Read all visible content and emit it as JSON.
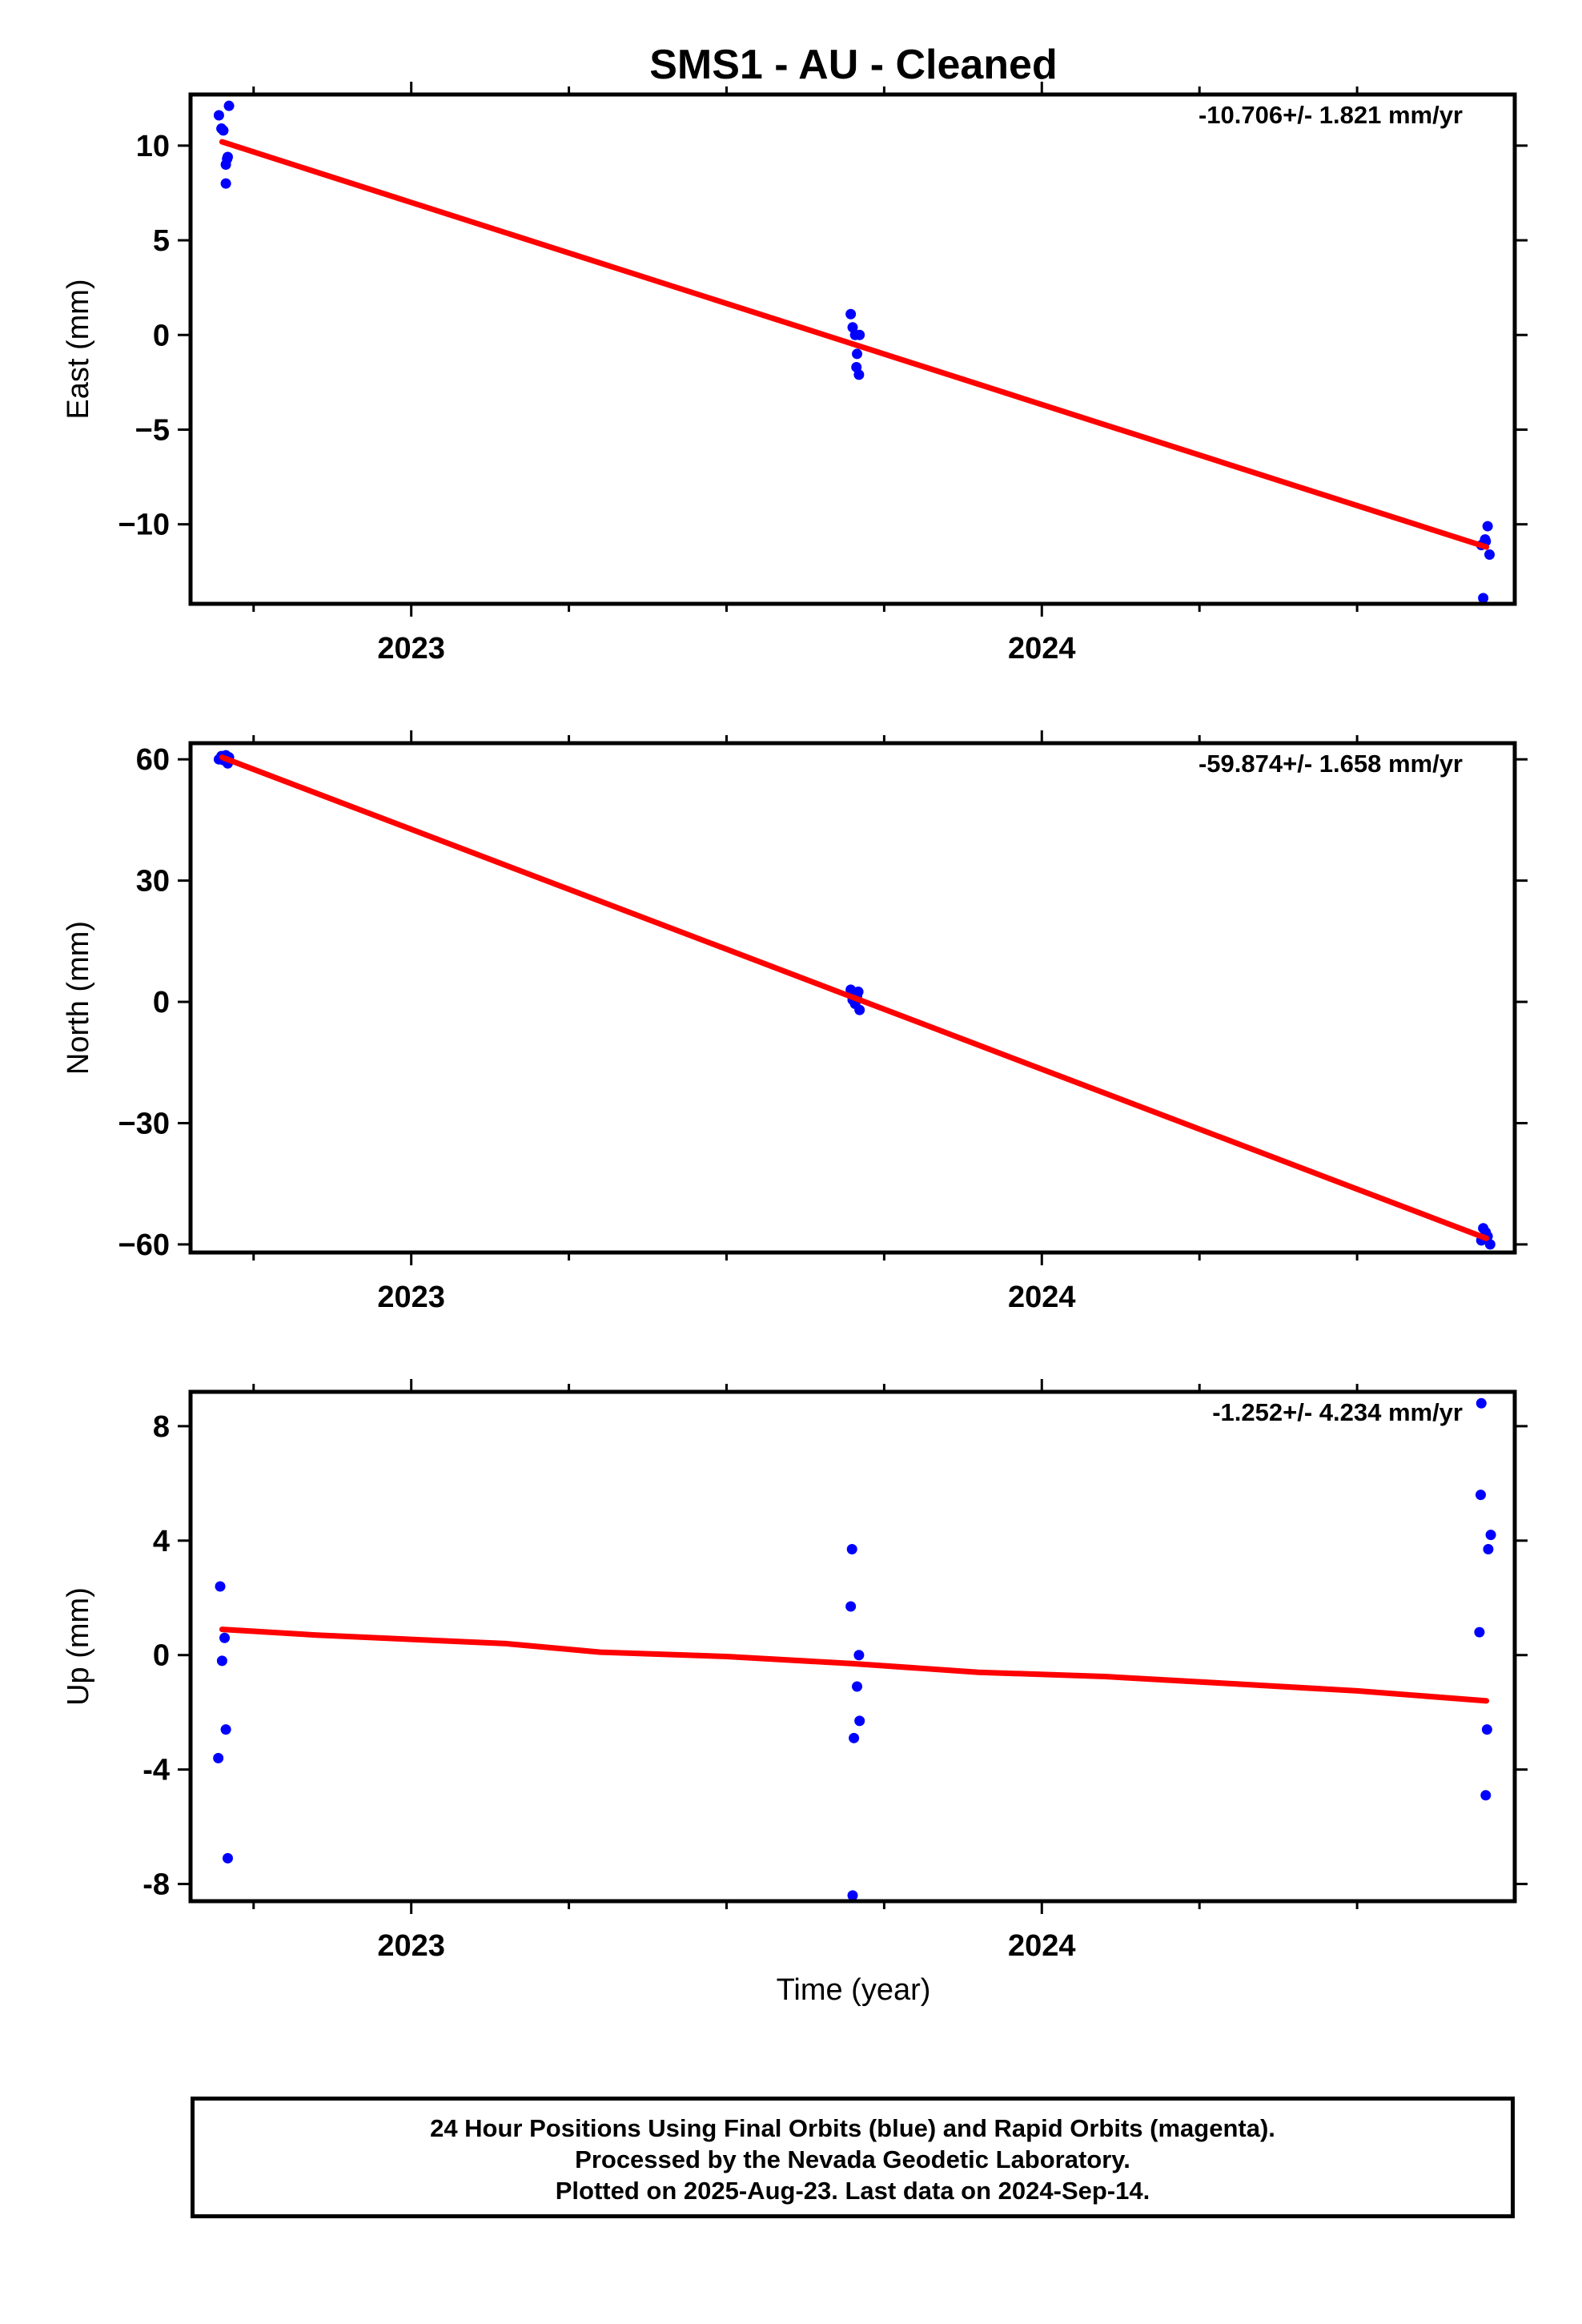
{
  "title": "SMS1  - AU - Cleaned",
  "xlabel": "Time (year)",
  "footer": {
    "line1": "24 Hour Positions Using Final Orbits (blue) and Rapid Orbits (magenta).",
    "line2": "Processed by the Nevada Geodetic Laboratory.",
    "line3": "Plotted on 2025-Aug-23. Last data on 2024-Sep-14."
  },
  "colors": {
    "data": "#0000ff",
    "fit": "#ff0000",
    "axis": "#000000"
  },
  "chart_data": [
    {
      "type": "scatter",
      "ylabel": "East (mm)",
      "rate": "-10.706+/- 1.821 mm/yr",
      "xlim": [
        2022.65,
        2024.75
      ],
      "ylim": [
        -14.2,
        12.7
      ],
      "yticks": [
        10,
        5,
        0,
        -5,
        -10
      ],
      "ytick_labels": [
        "10",
        "5",
        "0",
        "−5",
        "−10"
      ],
      "xticks": [
        2023,
        2024
      ],
      "xtick_labels": [
        "2023",
        "2024"
      ],
      "points": [
        [
          2022.695,
          11.6
        ],
        [
          2022.699,
          10.9
        ],
        [
          2022.702,
          10.8
        ],
        [
          2022.706,
          9.0
        ],
        [
          2022.708,
          9.3
        ],
        [
          2022.706,
          8.0
        ],
        [
          2022.711,
          12.1
        ],
        [
          2022.709,
          9.4
        ],
        [
          2023.697,
          1.1
        ],
        [
          2023.7,
          0.4
        ],
        [
          2023.704,
          0.0
        ],
        [
          2023.707,
          -1.0
        ],
        [
          2023.711,
          0.0
        ],
        [
          2023.706,
          -1.7
        ],
        [
          2023.71,
          -2.1
        ],
        [
          2024.697,
          -11.1
        ],
        [
          2024.7,
          -13.9
        ],
        [
          2024.704,
          -10.9
        ],
        [
          2024.707,
          -10.1
        ],
        [
          2024.71,
          -11.6
        ],
        [
          2024.703,
          -10.8
        ]
      ],
      "fit": [
        [
          2022.7,
          10.2
        ],
        [
          2024.705,
          -11.2
        ]
      ]
    },
    {
      "type": "scatter",
      "ylabel": "North (mm)",
      "rate": "-59.874+/- 1.658 mm/yr",
      "xlim": [
        2022.65,
        2024.75
      ],
      "ylim": [
        -62,
        64
      ],
      "yticks": [
        60,
        30,
        0,
        -30,
        -60
      ],
      "ytick_labels": [
        "60",
        "30",
        "0",
        "−30",
        "−60"
      ],
      "xticks": [
        2023,
        2024
      ],
      "xtick_labels": [
        "2023",
        "2024"
      ],
      "points": [
        [
          2022.695,
          60.0
        ],
        [
          2022.699,
          60.8
        ],
        [
          2022.702,
          59.8
        ],
        [
          2022.706,
          61.0
        ],
        [
          2022.709,
          59.0
        ],
        [
          2022.711,
          60.5
        ],
        [
          2022.704,
          60.2
        ],
        [
          2023.697,
          3.0
        ],
        [
          2023.7,
          0.5
        ],
        [
          2023.704,
          -0.5
        ],
        [
          2023.707,
          1.5
        ],
        [
          2023.711,
          -2.0
        ],
        [
          2023.709,
          2.5
        ],
        [
          2024.697,
          -59.0
        ],
        [
          2024.7,
          -56.0
        ],
        [
          2024.704,
          -57.0
        ],
        [
          2024.707,
          -58.0
        ],
        [
          2024.711,
          -60.0
        ]
      ],
      "fit": [
        [
          2022.7,
          60.5
        ],
        [
          2024.705,
          -58.5
        ]
      ]
    },
    {
      "type": "scatter",
      "ylabel": "Up (mm)",
      "rate": "-1.252+/- 4.234 mm/yr",
      "xlim": [
        2022.65,
        2024.75
      ],
      "ylim": [
        -8.6,
        9.2
      ],
      "yticks": [
        8,
        4,
        0,
        -4,
        -8
      ],
      "ytick_labels": [
        "8",
        "4",
        "0",
        "-4",
        "-8"
      ],
      "xticks": [
        2023,
        2024
      ],
      "xtick_labels": [
        "2023",
        "2024"
      ],
      "points": [
        [
          2022.697,
          2.4
        ],
        [
          2022.7,
          -0.2
        ],
        [
          2022.704,
          0.6
        ],
        [
          2022.706,
          -2.6
        ],
        [
          2022.694,
          -3.6
        ],
        [
          2022.709,
          -7.1
        ],
        [
          2023.699,
          3.7
        ],
        [
          2023.697,
          1.7
        ],
        [
          2023.71,
          0.0
        ],
        [
          2023.707,
          -1.1
        ],
        [
          2023.711,
          -2.3
        ],
        [
          2023.702,
          -2.9
        ],
        [
          2023.7,
          -8.4
        ],
        [
          2024.697,
          8.8
        ],
        [
          2024.696,
          5.6
        ],
        [
          2024.712,
          4.2
        ],
        [
          2024.708,
          3.7
        ],
        [
          2024.694,
          0.8
        ],
        [
          2024.706,
          -2.6
        ],
        [
          2024.704,
          -4.9
        ]
      ],
      "fit": [
        [
          2022.7,
          0.9
        ],
        [
          2022.85,
          0.7
        ],
        [
          2023.0,
          0.55
        ],
        [
          2023.15,
          0.4
        ],
        [
          2023.3,
          0.1
        ],
        [
          2023.5,
          -0.05
        ],
        [
          2023.7,
          -0.3
        ],
        [
          2023.9,
          -0.6
        ],
        [
          2024.1,
          -0.75
        ],
        [
          2024.3,
          -1.0
        ],
        [
          2024.5,
          -1.25
        ],
        [
          2024.705,
          -1.6
        ]
      ]
    }
  ]
}
